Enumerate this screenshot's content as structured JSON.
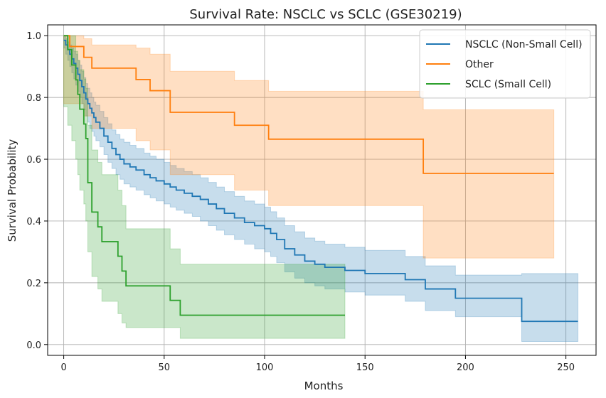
{
  "chart_data": {
    "type": "line",
    "subtype": "kaplan-meier-step",
    "title": "Survival Rate: NSCLC vs SCLC (GSE30219)",
    "xlabel": "Months",
    "ylabel": "Survival Probability",
    "xlim": [
      -8,
      265
    ],
    "ylim": [
      -0.035,
      1.035
    ],
    "xticks": [
      0,
      50,
      100,
      150,
      200,
      250
    ],
    "yticks": [
      0.0,
      0.2,
      0.4,
      0.6,
      0.8,
      1.0
    ],
    "xtick_labels": [
      "0",
      "50",
      "100",
      "150",
      "200",
      "250"
    ],
    "ytick_labels": [
      "0.0",
      "0.2",
      "0.4",
      "0.6",
      "0.8",
      "1.0"
    ],
    "grid": true,
    "legend_position": "upper-right",
    "series": [
      {
        "name": "NSCLC (Non-Small Cell)",
        "color": "#1f77b4",
        "x": [
          0,
          1,
          2,
          3,
          4,
          5,
          6,
          7,
          8,
          9,
          10,
          11,
          12,
          13,
          14,
          15,
          16,
          18,
          20,
          22,
          24,
          26,
          28,
          30,
          33,
          36,
          40,
          43,
          46,
          50,
          53,
          56,
          60,
          64,
          68,
          72,
          76,
          80,
          85,
          90,
          95,
          100,
          103,
          106,
          110,
          115,
          120,
          125,
          130,
          140,
          150,
          160,
          170,
          180,
          195,
          228,
          256
        ],
        "y": [
          0.985,
          0.97,
          0.955,
          0.94,
          0.925,
          0.91,
          0.895,
          0.875,
          0.855,
          0.835,
          0.815,
          0.795,
          0.78,
          0.765,
          0.75,
          0.735,
          0.72,
          0.7,
          0.675,
          0.655,
          0.635,
          0.615,
          0.6,
          0.585,
          0.575,
          0.565,
          0.55,
          0.54,
          0.53,
          0.52,
          0.51,
          0.5,
          0.49,
          0.48,
          0.47,
          0.455,
          0.44,
          0.425,
          0.41,
          0.395,
          0.385,
          0.375,
          0.36,
          0.34,
          0.31,
          0.29,
          0.27,
          0.26,
          0.25,
          0.24,
          0.23,
          0.23,
          0.21,
          0.18,
          0.15,
          0.075,
          0.075
        ],
        "ci_lower": [
          0.96,
          0.94,
          0.92,
          0.9,
          0.88,
          0.86,
          0.84,
          0.82,
          0.8,
          0.78,
          0.76,
          0.74,
          0.72,
          0.7,
          0.69,
          0.675,
          0.66,
          0.64,
          0.615,
          0.59,
          0.57,
          0.55,
          0.535,
          0.52,
          0.51,
          0.5,
          0.485,
          0.475,
          0.465,
          0.455,
          0.445,
          0.435,
          0.425,
          0.415,
          0.4,
          0.385,
          0.37,
          0.355,
          0.34,
          0.325,
          0.31,
          0.3,
          0.285,
          0.265,
          0.235,
          0.215,
          0.2,
          0.19,
          0.18,
          0.17,
          0.16,
          0.16,
          0.14,
          0.11,
          0.09,
          0.01,
          0.01
        ],
        "ci_upper": [
          1.0,
          0.99,
          0.98,
          0.97,
          0.96,
          0.95,
          0.94,
          0.92,
          0.905,
          0.885,
          0.865,
          0.845,
          0.83,
          0.815,
          0.8,
          0.785,
          0.775,
          0.755,
          0.735,
          0.715,
          0.695,
          0.68,
          0.665,
          0.655,
          0.645,
          0.635,
          0.62,
          0.61,
          0.6,
          0.59,
          0.58,
          0.57,
          0.56,
          0.55,
          0.54,
          0.525,
          0.51,
          0.495,
          0.48,
          0.465,
          0.455,
          0.445,
          0.43,
          0.41,
          0.385,
          0.365,
          0.345,
          0.335,
          0.325,
          0.315,
          0.305,
          0.305,
          0.285,
          0.255,
          0.225,
          0.23,
          0.23
        ]
      },
      {
        "name": "Other",
        "color": "#ff7f0e",
        "x": [
          0,
          3,
          10,
          14,
          36,
          43,
          53,
          85,
          102,
          179,
          244
        ],
        "y": [
          1.0,
          0.965,
          0.93,
          0.895,
          0.858,
          0.822,
          0.752,
          0.71,
          0.665,
          0.554,
          0.554
        ],
        "ci_lower": [
          0.78,
          0.78,
          0.74,
          0.7,
          0.66,
          0.63,
          0.55,
          0.5,
          0.45,
          0.28,
          0.28
        ],
        "ci_upper": [
          1.0,
          1.0,
          0.99,
          0.97,
          0.96,
          0.94,
          0.885,
          0.855,
          0.82,
          0.76,
          0.76
        ]
      },
      {
        "name": "SCLC (Small Cell)",
        "color": "#2ca02c",
        "x": [
          0,
          2,
          4,
          6,
          7,
          8,
          10,
          11,
          12,
          14,
          17,
          19,
          27,
          29,
          31,
          53,
          58,
          140
        ],
        "y": [
          1.0,
          0.955,
          0.905,
          0.857,
          0.81,
          0.762,
          0.714,
          0.667,
          0.524,
          0.429,
          0.381,
          0.333,
          0.286,
          0.238,
          0.19,
          0.143,
          0.095,
          0.095
        ],
        "ci_lower": [
          0.77,
          0.71,
          0.66,
          0.6,
          0.55,
          0.5,
          0.455,
          0.4,
          0.3,
          0.22,
          0.18,
          0.14,
          0.1,
          0.07,
          0.055,
          0.055,
          0.02,
          0.02
        ],
        "ci_upper": [
          1.0,
          1.0,
          1.0,
          0.95,
          0.92,
          0.89,
          0.86,
          0.83,
          0.71,
          0.63,
          0.59,
          0.55,
          0.5,
          0.45,
          0.375,
          0.31,
          0.26,
          0.26
        ]
      }
    ]
  }
}
